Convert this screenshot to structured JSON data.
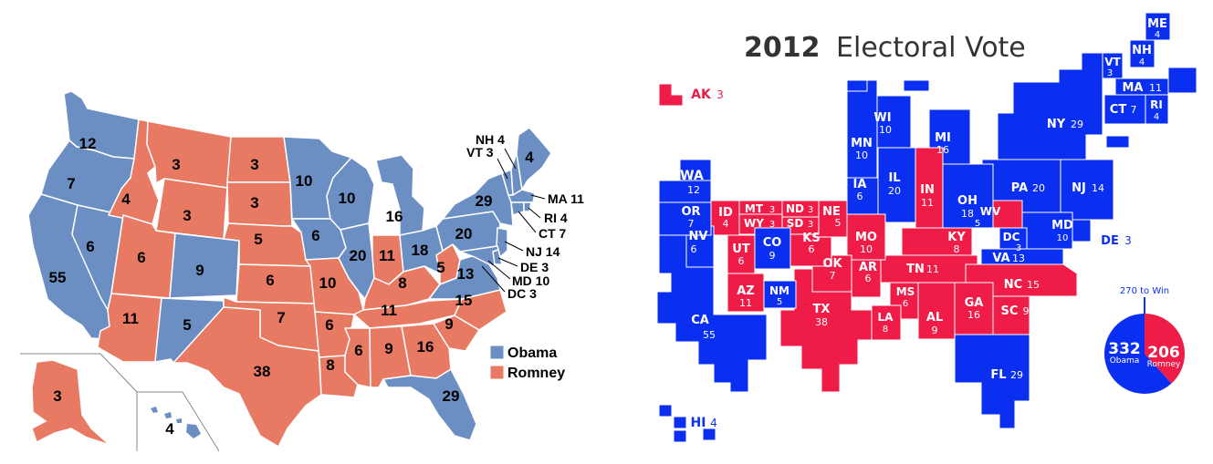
{
  "colors": {
    "obama_left": "#6b8ec3",
    "romney_left": "#e87a64",
    "obama_right": "#0a2ff0",
    "romney_right": "#ee1c47",
    "state_border": "#ffffff",
    "inset_border": "#888888"
  },
  "left_map": {
    "legend": [
      {
        "label": "Obama",
        "party": "D"
      },
      {
        "label": "Romney",
        "party": "R"
      }
    ],
    "states": [
      {
        "id": "WA",
        "party": "D",
        "value": "12"
      },
      {
        "id": "OR",
        "party": "D",
        "value": "7"
      },
      {
        "id": "CA",
        "party": "D",
        "value": "55"
      },
      {
        "id": "NV",
        "party": "D",
        "value": "6"
      },
      {
        "id": "ID",
        "party": "R",
        "value": "4"
      },
      {
        "id": "MT",
        "party": "R",
        "value": "3"
      },
      {
        "id": "WY",
        "party": "R",
        "value": "3"
      },
      {
        "id": "UT",
        "party": "R",
        "value": "6"
      },
      {
        "id": "CO",
        "party": "D",
        "value": "9"
      },
      {
        "id": "AZ",
        "party": "R",
        "value": "11"
      },
      {
        "id": "NM",
        "party": "D",
        "value": "5"
      },
      {
        "id": "ND",
        "party": "R",
        "value": "3"
      },
      {
        "id": "SD",
        "party": "R",
        "value": "3"
      },
      {
        "id": "NE",
        "party": "R",
        "value": "5"
      },
      {
        "id": "KS",
        "party": "R",
        "value": "6"
      },
      {
        "id": "OK",
        "party": "R",
        "value": "7"
      },
      {
        "id": "TX",
        "party": "R",
        "value": "38"
      },
      {
        "id": "MN",
        "party": "D",
        "value": "10"
      },
      {
        "id": "IA",
        "party": "D",
        "value": "6"
      },
      {
        "id": "MO",
        "party": "R",
        "value": "10"
      },
      {
        "id": "AR",
        "party": "R",
        "value": "6"
      },
      {
        "id": "LA",
        "party": "R",
        "value": "8"
      },
      {
        "id": "WI",
        "party": "D",
        "value": "10"
      },
      {
        "id": "IL",
        "party": "D",
        "value": "20"
      },
      {
        "id": "MS",
        "party": "R",
        "value": "6"
      },
      {
        "id": "MI",
        "party": "D",
        "value": "16"
      },
      {
        "id": "IN",
        "party": "R",
        "value": "11"
      },
      {
        "id": "KY",
        "party": "R",
        "value": "8"
      },
      {
        "id": "TN",
        "party": "R",
        "value": "11"
      },
      {
        "id": "AL",
        "party": "R",
        "value": "9"
      },
      {
        "id": "OH",
        "party": "D",
        "value": "18"
      },
      {
        "id": "WV",
        "party": "R",
        "value": "5"
      },
      {
        "id": "GA",
        "party": "R",
        "value": "16"
      },
      {
        "id": "FL",
        "party": "D",
        "value": "29"
      },
      {
        "id": "SC",
        "party": "R",
        "value": "9"
      },
      {
        "id": "NC",
        "party": "R",
        "value": "15"
      },
      {
        "id": "VA",
        "party": "D",
        "value": "13"
      },
      {
        "id": "PA",
        "party": "D",
        "value": "20"
      },
      {
        "id": "NY",
        "party": "D",
        "value": "29"
      },
      {
        "id": "ME",
        "party": "D",
        "value": "4"
      },
      {
        "id": "AK",
        "party": "R",
        "value": "3"
      },
      {
        "id": "HI",
        "party": "D",
        "value": "4"
      }
    ],
    "callouts": [
      {
        "id": "NH",
        "text": "NH 4"
      },
      {
        "id": "VT",
        "text": "VT 3"
      },
      {
        "id": "MA",
        "text": "MA 11"
      },
      {
        "id": "RI",
        "text": "RI 4"
      },
      {
        "id": "CT",
        "text": "CT 7"
      },
      {
        "id": "NJ",
        "text": "NJ 14"
      },
      {
        "id": "DE",
        "text": "DE 3"
      },
      {
        "id": "MD",
        "text": "MD 10"
      },
      {
        "id": "DC",
        "text": "DC 3"
      }
    ]
  },
  "right_map": {
    "title_year": "2012",
    "title_text": "Electoral Vote",
    "states": [
      {
        "abbr": "ME",
        "value": "4",
        "party": "D"
      },
      {
        "abbr": "NH",
        "value": "4",
        "party": "D"
      },
      {
        "abbr": "VT",
        "value": "3",
        "party": "D"
      },
      {
        "abbr": "MA",
        "value": "11",
        "party": "D"
      },
      {
        "abbr": "RI",
        "value": "4",
        "party": "D"
      },
      {
        "abbr": "CT",
        "value": "7",
        "party": "D"
      },
      {
        "abbr": "NY",
        "value": "29",
        "party": "D"
      },
      {
        "abbr": "PA",
        "value": "20",
        "party": "D"
      },
      {
        "abbr": "NJ",
        "value": "14",
        "party": "D"
      },
      {
        "abbr": "MD",
        "value": "10",
        "party": "D"
      },
      {
        "abbr": "DC",
        "value": "3",
        "party": "D"
      },
      {
        "abbr": "DE",
        "value": "3",
        "party": "D"
      },
      {
        "abbr": "VA",
        "value": "13",
        "party": "D"
      },
      {
        "abbr": "WV",
        "value": "5",
        "party": "R"
      },
      {
        "abbr": "OH",
        "value": "18",
        "party": "D"
      },
      {
        "abbr": "MI",
        "value": "16",
        "party": "D"
      },
      {
        "abbr": "IN",
        "value": "11",
        "party": "R"
      },
      {
        "abbr": "IL",
        "value": "20",
        "party": "D"
      },
      {
        "abbr": "WI",
        "value": "10",
        "party": "D"
      },
      {
        "abbr": "MN",
        "value": "10",
        "party": "D"
      },
      {
        "abbr": "IA",
        "value": "6",
        "party": "D"
      },
      {
        "abbr": "KY",
        "value": "8",
        "party": "R"
      },
      {
        "abbr": "TN",
        "value": "11",
        "party": "R"
      },
      {
        "abbr": "NC",
        "value": "15",
        "party": "R"
      },
      {
        "abbr": "SC",
        "value": "9",
        "party": "R"
      },
      {
        "abbr": "GA",
        "value": "16",
        "party": "R"
      },
      {
        "abbr": "FL",
        "value": "29",
        "party": "D"
      },
      {
        "abbr": "AL",
        "value": "9",
        "party": "R"
      },
      {
        "abbr": "MS",
        "value": "6",
        "party": "R"
      },
      {
        "abbr": "LA",
        "value": "8",
        "party": "R"
      },
      {
        "abbr": "AR",
        "value": "6",
        "party": "R"
      },
      {
        "abbr": "MO",
        "value": "10",
        "party": "R"
      },
      {
        "abbr": "TX",
        "value": "38",
        "party": "R"
      },
      {
        "abbr": "OK",
        "value": "7",
        "party": "R"
      },
      {
        "abbr": "KS",
        "value": "6",
        "party": "R"
      },
      {
        "abbr": "NE",
        "value": "5",
        "party": "R"
      },
      {
        "abbr": "SD",
        "value": "3",
        "party": "R"
      },
      {
        "abbr": "ND",
        "value": "3",
        "party": "R"
      },
      {
        "abbr": "MT",
        "value": "3",
        "party": "R"
      },
      {
        "abbr": "WY",
        "value": "3",
        "party": "R"
      },
      {
        "abbr": "ID",
        "value": "4",
        "party": "R"
      },
      {
        "abbr": "UT",
        "value": "6",
        "party": "R"
      },
      {
        "abbr": "CO",
        "value": "9",
        "party": "D"
      },
      {
        "abbr": "NM",
        "value": "5",
        "party": "D"
      },
      {
        "abbr": "AZ",
        "value": "11",
        "party": "R"
      },
      {
        "abbr": "NV",
        "value": "6",
        "party": "D"
      },
      {
        "abbr": "CA",
        "value": "55",
        "party": "D"
      },
      {
        "abbr": "OR",
        "value": "7",
        "party": "D"
      },
      {
        "abbr": "WA",
        "value": "12",
        "party": "D"
      },
      {
        "abbr": "AK",
        "value": "3",
        "party": "R"
      },
      {
        "abbr": "HI",
        "value": "4",
        "party": "D"
      }
    ],
    "summary": {
      "threshold_text": "270 to Win",
      "obama_total": "332",
      "obama_label": "Obama",
      "romney_total": "206",
      "romney_label": "Romney",
      "obama_share": 0.6171
    }
  }
}
